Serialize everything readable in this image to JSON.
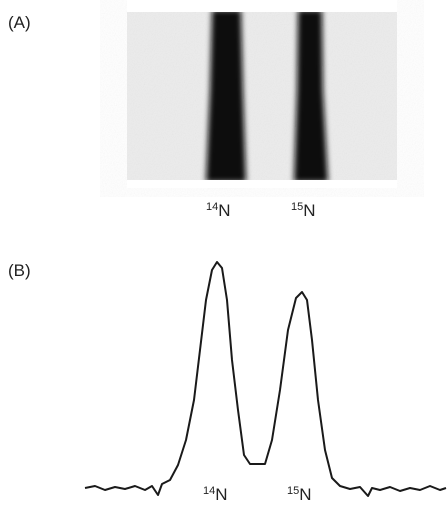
{
  "panel_a": {
    "label": "(A)",
    "bands": [
      {
        "mass": "14",
        "element": "N"
      },
      {
        "mass": "15",
        "element": "N"
      }
    ]
  },
  "panel_b": {
    "label": "(B)",
    "peaks": [
      {
        "mass": "14",
        "element": "N"
      },
      {
        "mass": "15",
        "element": "N"
      }
    ]
  }
}
